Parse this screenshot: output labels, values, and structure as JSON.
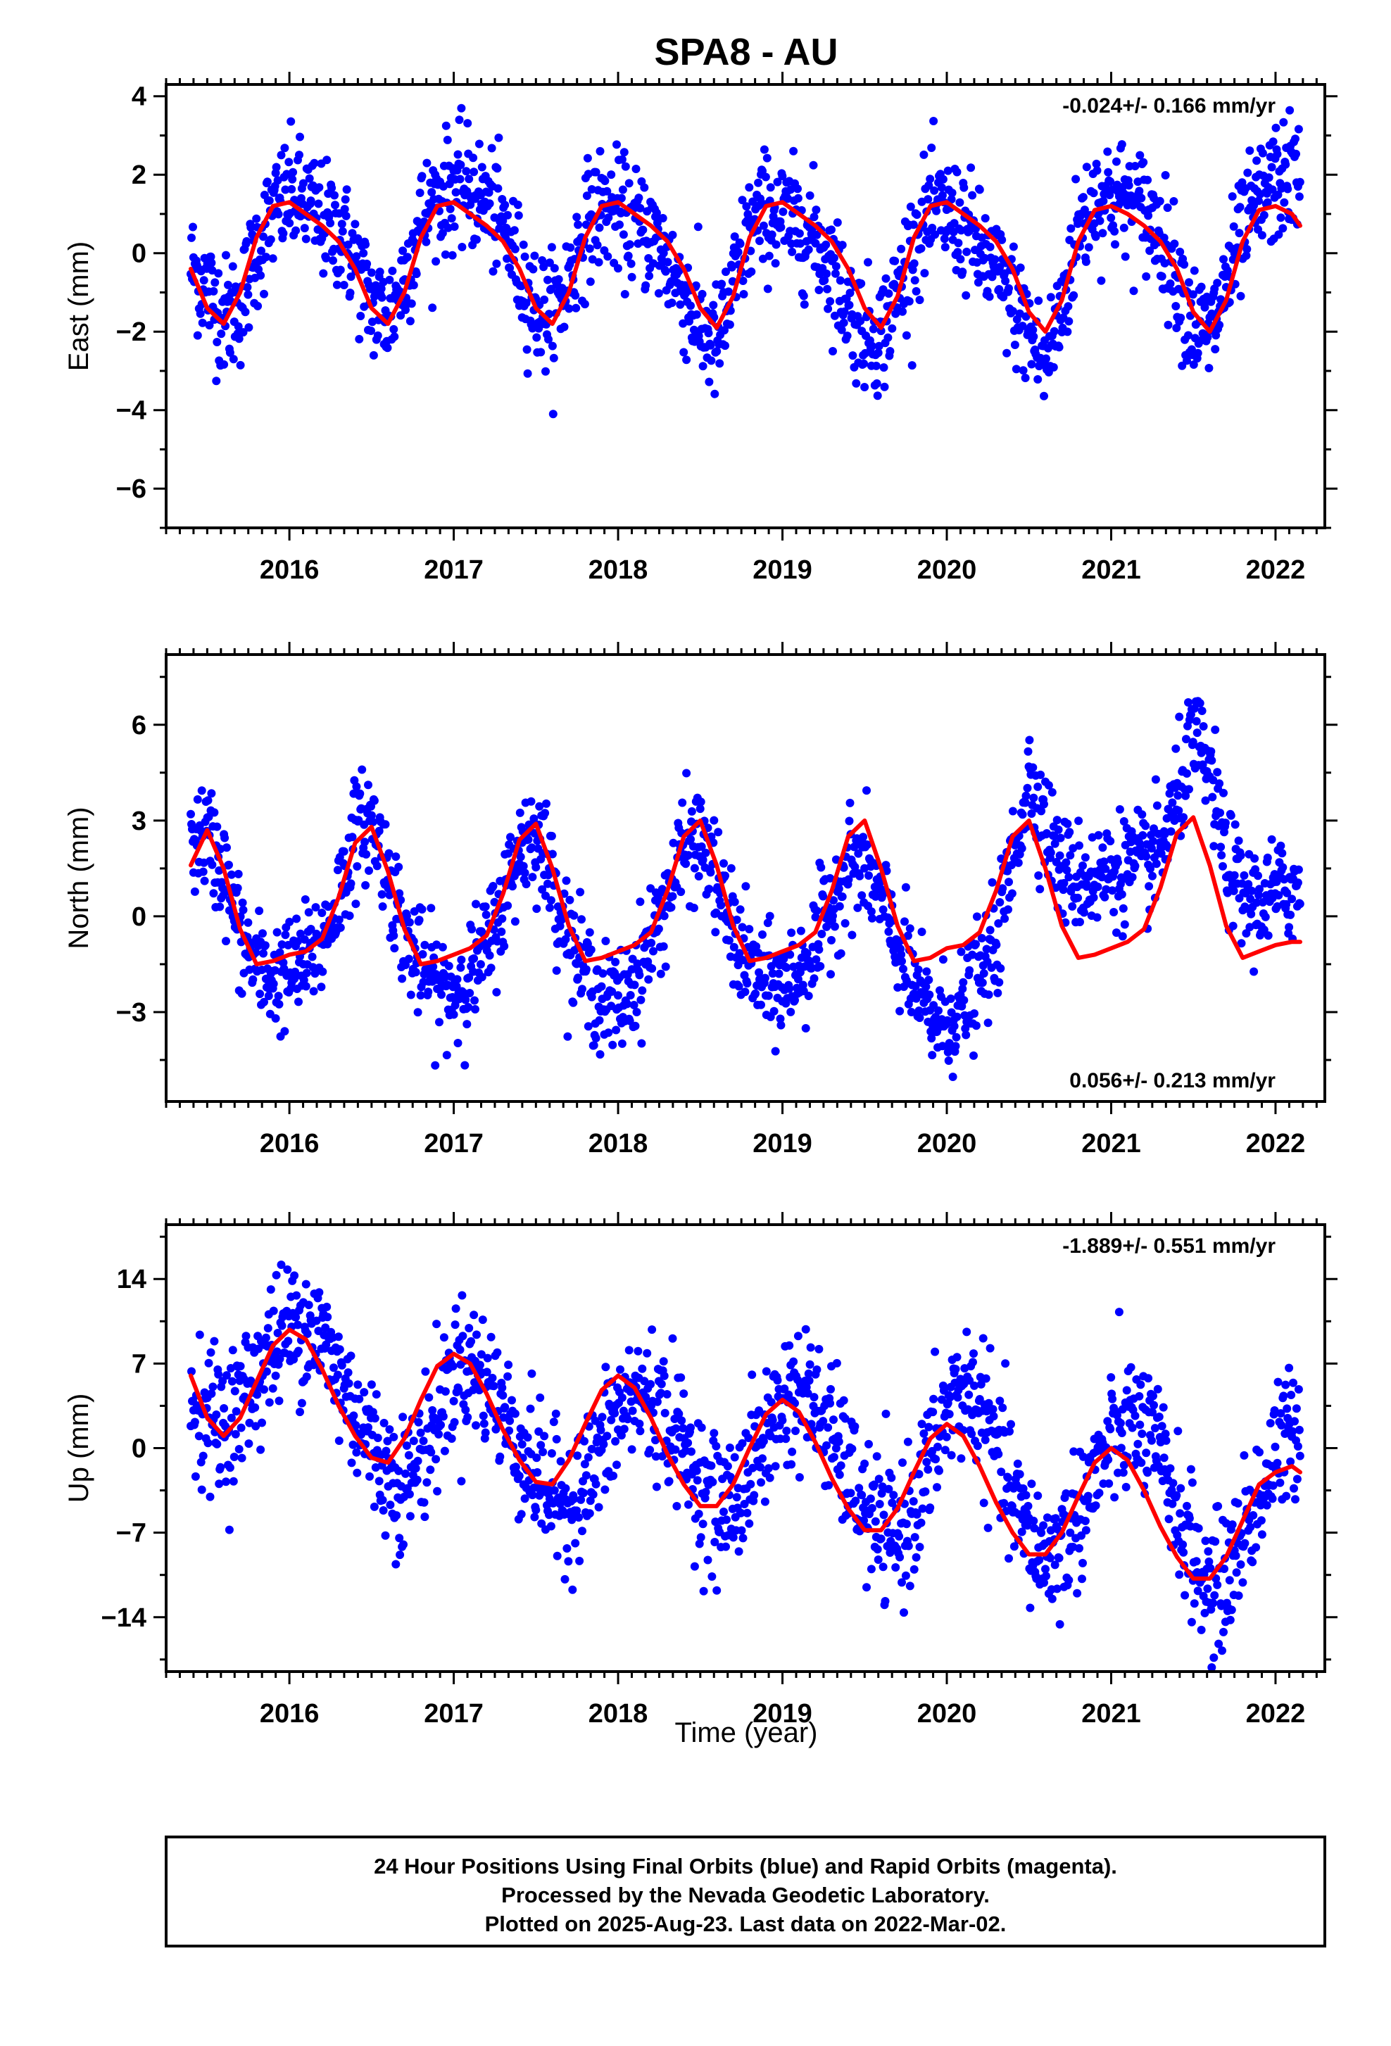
{
  "title": "SPA8 - AU",
  "xlabel": "Time (year)",
  "colors": {
    "points": "#0000ff",
    "fit": "#ff0000",
    "frame": "#000000"
  },
  "caption": [
    "24 Hour Positions Using Final Orbits (blue) and Rapid Orbits (magenta).",
    "Processed by the Nevada Geodetic Laboratory.",
    "Plotted on 2025-Aug-23. Last data on 2022-Mar-02."
  ],
  "chart_data": [
    {
      "type": "scatter",
      "ylabel": "East (mm)",
      "rate_label": "-0.024+/- 0.166 mm/yr",
      "rate_position": "top-right",
      "xlim": [
        2015.25,
        2022.3
      ],
      "ylim": [
        -7.0,
        4.3
      ],
      "x_ticks": [
        2016,
        2017,
        2018,
        2019,
        2020,
        2021,
        2022
      ],
      "y_ticks": [
        -6,
        -4,
        -2,
        0,
        2,
        4
      ],
      "series": [
        {
          "kind": "scatter",
          "x": [
            2015.4,
            2015.5,
            2015.6,
            2015.7,
            2015.8,
            2015.9,
            2016.0,
            2016.1,
            2016.2,
            2016.3,
            2016.4,
            2016.5,
            2016.6,
            2016.7,
            2016.8,
            2016.9,
            2017.0,
            2017.1,
            2017.2,
            2017.3,
            2017.4,
            2017.5,
            2017.6,
            2017.7,
            2017.8,
            2017.9,
            2018.0,
            2018.1,
            2018.2,
            2018.3,
            2018.4,
            2018.5,
            2018.6,
            2018.7,
            2018.8,
            2018.9,
            2019.0,
            2019.1,
            2019.2,
            2019.3,
            2019.4,
            2019.5,
            2019.6,
            2019.7,
            2019.8,
            2019.9,
            2020.0,
            2020.1,
            2020.2,
            2020.3,
            2020.4,
            2020.5,
            2020.6,
            2020.7,
            2020.8,
            2020.9,
            2021.0,
            2021.1,
            2021.2,
            2021.3,
            2021.4,
            2021.5,
            2021.6,
            2021.7,
            2021.8,
            2021.9,
            2022.0,
            2022.1,
            2022.15
          ],
          "y": [
            -0.3,
            -0.9,
            -1.6,
            -1.4,
            0.1,
            1.0,
            1.5,
            1.3,
            0.8,
            0.6,
            -0.2,
            -1.3,
            -1.6,
            -0.6,
            0.8,
            1.4,
            1.7,
            1.6,
            1.3,
            0.7,
            -0.4,
            -1.4,
            -1.6,
            -0.7,
            0.7,
            1.2,
            1.0,
            0.7,
            0.5,
            -0.2,
            -1.0,
            -1.9,
            -2.4,
            -0.9,
            0.6,
            1.1,
            0.9,
            0.7,
            0.4,
            -0.3,
            -1.3,
            -2.0,
            -2.1,
            -1.0,
            0.3,
            1.0,
            1.0,
            0.7,
            0.1,
            -0.6,
            -1.2,
            -2.0,
            -2.9,
            -1.4,
            0.6,
            1.4,
            1.5,
            1.3,
            1.1,
            0.5,
            -0.5,
            -1.8,
            -2.1,
            -0.8,
            0.5,
            1.3,
            1.8,
            2.0,
            1.8
          ],
          "spread": 0.75
        },
        {
          "kind": "line",
          "x": [
            2015.4,
            2015.5,
            2015.6,
            2015.7,
            2015.8,
            2015.9,
            2016.0,
            2016.1,
            2016.2,
            2016.3,
            2016.4,
            2016.5,
            2016.6,
            2016.7,
            2016.8,
            2016.9,
            2017.0,
            2017.1,
            2017.2,
            2017.3,
            2017.4,
            2017.5,
            2017.6,
            2017.7,
            2017.8,
            2017.9,
            2018.0,
            2018.1,
            2018.2,
            2018.3,
            2018.4,
            2018.5,
            2018.6,
            2018.7,
            2018.8,
            2018.9,
            2019.0,
            2019.1,
            2019.2,
            2019.3,
            2019.4,
            2019.5,
            2019.6,
            2019.7,
            2019.8,
            2019.9,
            2020.0,
            2020.1,
            2020.2,
            2020.3,
            2020.4,
            2020.5,
            2020.6,
            2020.7,
            2020.8,
            2020.9,
            2021.0,
            2021.1,
            2021.2,
            2021.3,
            2021.4,
            2021.5,
            2021.6,
            2021.7,
            2021.8,
            2021.9,
            2022.0,
            2022.1,
            2022.15
          ],
          "y": [
            -0.4,
            -1.4,
            -1.8,
            -1.0,
            0.4,
            1.2,
            1.3,
            1.0,
            0.7,
            0.3,
            -0.4,
            -1.4,
            -1.8,
            -1.0,
            0.4,
            1.2,
            1.3,
            1.0,
            0.7,
            0.3,
            -0.4,
            -1.4,
            -1.8,
            -1.0,
            0.4,
            1.2,
            1.3,
            1.0,
            0.7,
            0.3,
            -0.4,
            -1.4,
            -1.9,
            -1.1,
            0.4,
            1.2,
            1.3,
            1.0,
            0.7,
            0.3,
            -0.4,
            -1.4,
            -1.9,
            -1.1,
            0.4,
            1.2,
            1.3,
            1.0,
            0.7,
            0.3,
            -0.4,
            -1.5,
            -2.0,
            -1.2,
            0.3,
            1.1,
            1.2,
            1.0,
            0.7,
            0.3,
            -0.4,
            -1.5,
            -2.0,
            -1.2,
            0.3,
            1.1,
            1.2,
            1.0,
            0.7
          ]
        }
      ]
    },
    {
      "type": "scatter",
      "ylabel": "North (mm)",
      "rate_label": "0.056+/- 0.213 mm/yr",
      "rate_position": "bottom-right",
      "xlim": [
        2015.25,
        2022.3
      ],
      "ylim": [
        -5.8,
        8.2
      ],
      "x_ticks": [
        2016,
        2017,
        2018,
        2019,
        2020,
        2021,
        2022
      ],
      "y_ticks": [
        -3,
        0,
        3,
        6
      ],
      "series": [
        {
          "kind": "scatter",
          "x": [
            2015.4,
            2015.5,
            2015.6,
            2015.7,
            2015.8,
            2015.9,
            2016.0,
            2016.1,
            2016.2,
            2016.3,
            2016.4,
            2016.5,
            2016.6,
            2016.7,
            2016.8,
            2016.9,
            2017.0,
            2017.1,
            2017.2,
            2017.3,
            2017.4,
            2017.5,
            2017.6,
            2017.7,
            2017.8,
            2017.9,
            2018.0,
            2018.1,
            2018.2,
            2018.3,
            2018.4,
            2018.5,
            2018.6,
            2018.7,
            2018.8,
            2018.9,
            2019.0,
            2019.1,
            2019.2,
            2019.3,
            2019.4,
            2019.5,
            2019.6,
            2019.7,
            2019.8,
            2019.9,
            2020.0,
            2020.1,
            2020.2,
            2020.3,
            2020.4,
            2020.5,
            2020.6,
            2020.7,
            2020.8,
            2020.9,
            2021.0,
            2021.1,
            2021.2,
            2021.3,
            2021.4,
            2021.5,
            2021.6,
            2021.7,
            2021.8,
            2021.9,
            2022.0,
            2022.1,
            2022.15
          ],
          "y": [
            2.4,
            2.5,
            1.4,
            -0.6,
            -1.6,
            -1.9,
            -1.8,
            -1.4,
            -0.8,
            0.6,
            2.6,
            3.0,
            1.4,
            -0.6,
            -1.6,
            -2.2,
            -2.4,
            -1.8,
            -1.0,
            0.4,
            2.2,
            2.7,
            1.2,
            -0.7,
            -1.8,
            -2.6,
            -2.8,
            -2.0,
            -0.8,
            0.6,
            2.1,
            2.4,
            1.1,
            -0.6,
            -1.6,
            -2.2,
            -2.2,
            -1.7,
            -1.0,
            0.4,
            1.6,
            1.6,
            0.5,
            -1.0,
            -2.2,
            -3.2,
            -3.3,
            -2.8,
            -2.0,
            -0.9,
            1.8,
            4.4,
            2.9,
            1.4,
            1.2,
            1.2,
            1.4,
            1.6,
            1.5,
            2.0,
            3.6,
            5.5,
            4.5,
            1.8,
            0.6,
            0.4,
            0.7,
            0.9,
            0.8
          ],
          "spread": 0.85
        },
        {
          "kind": "line",
          "x": [
            2015.4,
            2015.5,
            2015.6,
            2015.7,
            2015.8,
            2015.9,
            2016.0,
            2016.1,
            2016.2,
            2016.3,
            2016.4,
            2016.5,
            2016.6,
            2016.7,
            2016.8,
            2016.9,
            2017.0,
            2017.1,
            2017.2,
            2017.3,
            2017.4,
            2017.5,
            2017.6,
            2017.7,
            2017.8,
            2017.9,
            2018.0,
            2018.1,
            2018.2,
            2018.3,
            2018.4,
            2018.5,
            2018.6,
            2018.7,
            2018.8,
            2018.9,
            2019.0,
            2019.1,
            2019.2,
            2019.3,
            2019.4,
            2019.5,
            2019.6,
            2019.7,
            2019.8,
            2019.9,
            2020.0,
            2020.1,
            2020.2,
            2020.3,
            2020.4,
            2020.5,
            2020.6,
            2020.7,
            2020.8,
            2020.9,
            2021.0,
            2021.1,
            2021.2,
            2021.3,
            2021.4,
            2021.5,
            2021.6,
            2021.7,
            2021.8,
            2021.9,
            2022.0,
            2022.1,
            2022.15
          ],
          "y": [
            1.6,
            2.7,
            1.5,
            -0.4,
            -1.5,
            -1.4,
            -1.2,
            -1.1,
            -0.7,
            0.6,
            2.3,
            2.8,
            1.4,
            -0.4,
            -1.5,
            -1.4,
            -1.2,
            -1.0,
            -0.6,
            0.7,
            2.4,
            2.9,
            1.5,
            -0.3,
            -1.4,
            -1.3,
            -1.1,
            -0.9,
            -0.5,
            0.8,
            2.5,
            3.0,
            1.6,
            -0.3,
            -1.4,
            -1.3,
            -1.1,
            -0.9,
            -0.5,
            0.8,
            2.5,
            3.0,
            1.5,
            -0.3,
            -1.4,
            -1.3,
            -1.0,
            -0.9,
            -0.5,
            0.8,
            2.5,
            3.0,
            1.5,
            -0.3,
            -1.3,
            -1.2,
            -1.0,
            -0.8,
            -0.4,
            0.9,
            2.6,
            3.1,
            1.6,
            -0.3,
            -1.3,
            -1.1,
            -0.9,
            -0.8,
            -0.8
          ],
          "note": ""
        }
      ]
    },
    {
      "type": "scatter",
      "ylabel": "Up (mm)",
      "rate_label": "-1.889+/- 0.551 mm/yr",
      "rate_position": "top-right",
      "xlim": [
        2015.25,
        2022.3
      ],
      "ylim": [
        -18.5,
        18.5
      ],
      "x_ticks": [
        2016,
        2017,
        2018,
        2019,
        2020,
        2021,
        2022
      ],
      "y_ticks": [
        -14,
        -7,
        0,
        7,
        14
      ],
      "series": [
        {
          "kind": "scatter",
          "x": [
            2015.4,
            2015.5,
            2015.6,
            2015.7,
            2015.8,
            2015.9,
            2016.0,
            2016.1,
            2016.2,
            2016.3,
            2016.4,
            2016.5,
            2016.6,
            2016.7,
            2016.8,
            2016.9,
            2017.0,
            2017.1,
            2017.2,
            2017.3,
            2017.4,
            2017.5,
            2017.6,
            2017.7,
            2017.8,
            2017.9,
            2018.0,
            2018.1,
            2018.2,
            2018.3,
            2018.4,
            2018.5,
            2018.6,
            2018.7,
            2018.8,
            2018.9,
            2019.0,
            2019.1,
            2019.2,
            2019.3,
            2019.4,
            2019.5,
            2019.6,
            2019.7,
            2019.8,
            2019.9,
            2020.0,
            2020.1,
            2020.2,
            2020.3,
            2020.4,
            2020.5,
            2020.6,
            2020.7,
            2020.8,
            2020.9,
            2021.0,
            2021.1,
            2021.2,
            2021.3,
            2021.4,
            2021.5,
            2021.6,
            2021.7,
            2021.8,
            2021.9,
            2022.0,
            2022.1,
            2022.15
          ],
          "y": [
            4.0,
            3.0,
            2.0,
            3.5,
            6.0,
            8.5,
            10.0,
            10.5,
            9.0,
            6.0,
            3.0,
            0.5,
            -2.0,
            -3.0,
            -0.5,
            2.5,
            6.5,
            7.0,
            5.5,
            3.0,
            0.0,
            -2.0,
            -4.0,
            -4.5,
            -3.0,
            0.0,
            2.5,
            4.5,
            4.0,
            2.5,
            0.0,
            -3.0,
            -5.0,
            -4.5,
            -2.0,
            1.0,
            4.0,
            4.5,
            3.5,
            1.0,
            -2.0,
            -5.0,
            -7.0,
            -7.5,
            -5.0,
            -1.0,
            3.0,
            5.0,
            3.5,
            0.0,
            -4.0,
            -7.5,
            -9.0,
            -8.0,
            -5.5,
            -2.5,
            0.5,
            2.0,
            1.5,
            -1.0,
            -5.0,
            -9.0,
            -12.0,
            -11.0,
            -7.0,
            -4.0,
            -1.0,
            1.5,
            2.5
          ],
          "spread": 2.8
        },
        {
          "kind": "line",
          "x": [
            2015.4,
            2015.5,
            2015.6,
            2015.7,
            2015.8,
            2015.9,
            2016.0,
            2016.1,
            2016.2,
            2016.3,
            2016.4,
            2016.5,
            2016.6,
            2016.7,
            2016.8,
            2016.9,
            2017.0,
            2017.1,
            2017.2,
            2017.3,
            2017.4,
            2017.5,
            2017.6,
            2017.7,
            2017.8,
            2017.9,
            2018.0,
            2018.1,
            2018.2,
            2018.3,
            2018.4,
            2018.5,
            2018.6,
            2018.7,
            2018.8,
            2018.9,
            2019.0,
            2019.1,
            2019.2,
            2019.3,
            2019.4,
            2019.5,
            2019.6,
            2019.7,
            2019.8,
            2019.9,
            2020.0,
            2020.1,
            2020.2,
            2020.3,
            2020.4,
            2020.5,
            2020.6,
            2020.7,
            2020.8,
            2020.9,
            2021.0,
            2021.1,
            2021.2,
            2021.3,
            2021.4,
            2021.5,
            2021.6,
            2021.7,
            2021.8,
            2021.9,
            2022.0,
            2022.1,
            2022.15
          ],
          "y": [
            6.0,
            2.5,
            1.0,
            2.5,
            5.5,
            8.5,
            9.8,
            9.0,
            6.5,
            3.5,
            1.0,
            -0.8,
            -1.2,
            0.8,
            4.0,
            6.8,
            7.8,
            7.0,
            4.5,
            1.5,
            -1.0,
            -2.8,
            -3.0,
            -1.0,
            2.0,
            4.8,
            6.0,
            5.0,
            2.5,
            -0.5,
            -3.0,
            -4.8,
            -4.8,
            -3.0,
            0.0,
            2.8,
            4.0,
            3.0,
            0.5,
            -2.5,
            -5.0,
            -6.8,
            -6.8,
            -5.0,
            -2.0,
            0.8,
            2.0,
            1.0,
            -1.5,
            -4.5,
            -7.0,
            -8.8,
            -8.8,
            -7.0,
            -4.0,
            -1.2,
            0.0,
            -1.0,
            -3.5,
            -6.5,
            -9.0,
            -10.8,
            -10.8,
            -9.0,
            -6.0,
            -3.0,
            -2.0,
            -1.5,
            -2.0
          ]
        }
      ]
    }
  ]
}
